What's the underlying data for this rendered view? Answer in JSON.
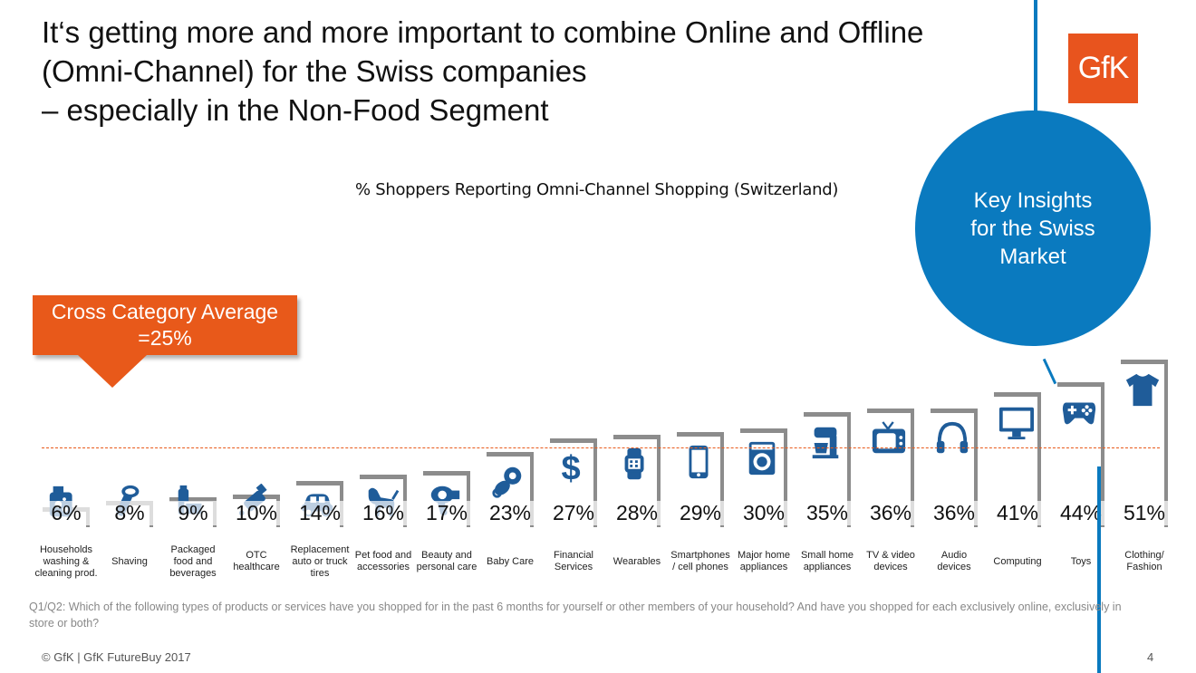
{
  "title": "It‘s getting more and more important to combine Online and Offline\n(Omni-Channel) for the Swiss companies\n– especially in the Non-Food Segment",
  "logo_text": "GfK",
  "insights_circle": "Key Insights\nfor the Swiss\nMarket",
  "callout": "Cross Category Average\n=25%",
  "footnote": "Q1/Q2: Which of the following types of products or services have you shopped for in the past 6 months for yourself or other members of your household? And have you shopped for each exclusively online, exclusively in store or both?",
  "copyright": "© GfK | GfK FutureBuy 2017",
  "page_number": "4",
  "colors": {
    "accent_blue": "#0a7abf",
    "accent_orange": "#e8591a",
    "icon_blue": "#1f5c99",
    "bar_gray": "#8c8c8c"
  },
  "chart_data": {
    "type": "bar",
    "title": "% Shoppers Reporting Omni-Channel Shopping (Switzerland)",
    "categories": [
      "Households\nwashing &\ncleaning prod.",
      "Shaving",
      "Packaged\nfood and\nbeverages",
      "OTC\nhealthcare",
      "Replacement\nauto or truck\ntires",
      "Pet food and\naccessories",
      "Beauty and\npersonal care",
      "Baby Care",
      "Financial\nServices",
      "Wearables",
      "Smartphones\n/ cell phones",
      "Major home\nappliances",
      "Small home\nappliances",
      "TV & video\ndevices",
      "Audio\ndevices",
      "Computing",
      "Toys",
      "Clothing/\nFashion"
    ],
    "values": [
      6,
      8,
      9,
      10,
      14,
      16,
      17,
      23,
      27,
      28,
      29,
      30,
      35,
      36,
      36,
      41,
      44,
      51
    ],
    "labels": [
      "6%",
      "8%",
      "9%",
      "10%",
      "14%",
      "16%",
      "17%",
      "23%",
      "27%",
      "28%",
      "29%",
      "30%",
      "35%",
      "36%",
      "36%",
      "41%",
      "44%",
      "51%"
    ],
    "icons": [
      "detergent-icon",
      "shaver-icon",
      "packaged-food-icon",
      "pill-bottle-icon",
      "car-icon",
      "dog-icon",
      "hair-dryer-icon",
      "pacifier-icon",
      "dollar-icon",
      "smartwatch-icon",
      "smartphone-icon",
      "washing-machine-icon",
      "mixer-icon",
      "tv-icon",
      "headphones-icon",
      "monitor-icon",
      "gamepad-icon",
      "tshirt-icon"
    ],
    "average": 25,
    "ylim": [
      0,
      51
    ]
  }
}
